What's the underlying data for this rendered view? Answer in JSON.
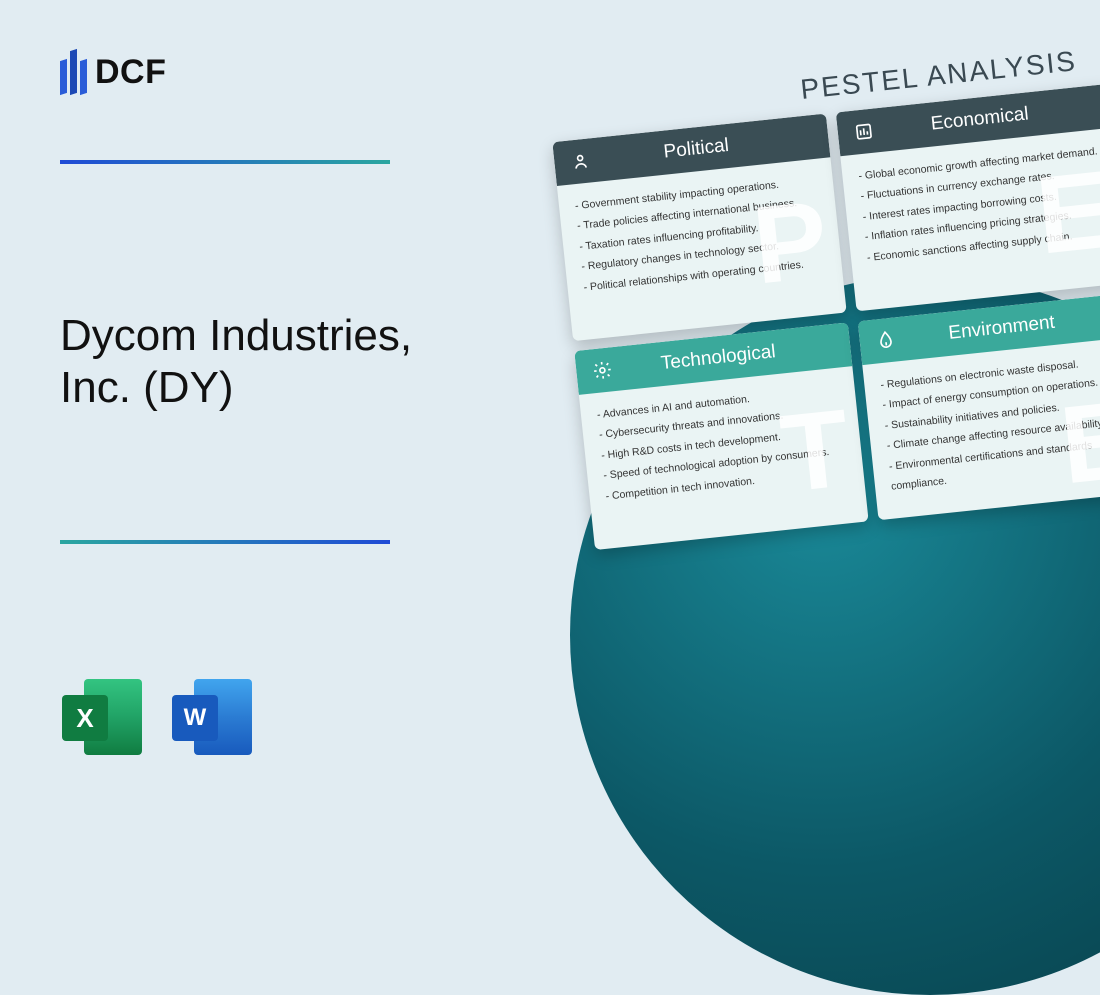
{
  "logo": {
    "text": "DCF"
  },
  "title": "Dycom Industries, Inc. (DY)",
  "fileIcons": {
    "excel": "X",
    "word": "W"
  },
  "pestel": {
    "title": "PESTEL ANALYSIS",
    "cards": [
      {
        "label": "Political",
        "headerColor": "dark",
        "watermark": "P",
        "items": [
          "Government stability impacting operations.",
          "Trade policies affecting international business.",
          "Taxation rates influencing profitability.",
          "Regulatory changes in technology sector.",
          "Political relationships with operating countries."
        ]
      },
      {
        "label": "Economical",
        "headerColor": "dark",
        "watermark": "E",
        "items": [
          "Global economic growth affecting market demand.",
          "Fluctuations in currency exchange rates.",
          "Interest rates impacting borrowing costs.",
          "Inflation rates influencing pricing strategies.",
          "Economic sanctions affecting supply chain."
        ]
      },
      {
        "label": "Technological",
        "headerColor": "teal",
        "watermark": "T",
        "items": [
          "Advances in AI and automation.",
          "Cybersecurity threats and innovations.",
          "High R&D costs in tech development.",
          "Speed of technological adoption by consumers.",
          "Competition in tech innovation."
        ]
      },
      {
        "label": "Environment",
        "headerColor": "teal",
        "watermark": "E",
        "items": [
          "Regulations on electronic waste disposal.",
          "Impact of energy consumption on operations.",
          "Sustainability initiatives and policies.",
          "Climate change affecting resource availability.",
          "Environmental certifications and standards compliance."
        ]
      }
    ]
  },
  "colors": {
    "page_bg": "#e1ecf2",
    "circle_gradient": [
      "#1a8a99",
      "#0c5866",
      "#083e48"
    ],
    "divider_gradient": [
      "#1f4bd6",
      "#2aa6a0"
    ],
    "card_header_dark": "#3a4e55",
    "card_header_teal": "#3aa99b",
    "card_body_bg": "#eaf4f4"
  }
}
